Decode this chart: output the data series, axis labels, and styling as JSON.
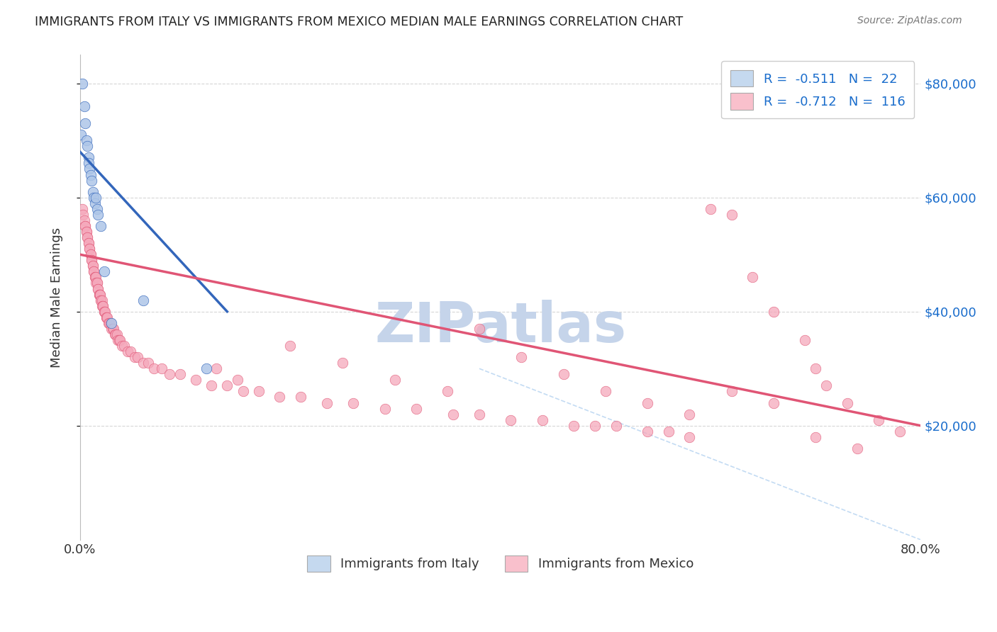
{
  "title": "IMMIGRANTS FROM ITALY VS IMMIGRANTS FROM MEXICO MEDIAN MALE EARNINGS CORRELATION CHART",
  "source": "Source: ZipAtlas.com",
  "ylabel": "Median Male Earnings",
  "y_ticks": [
    20000,
    40000,
    60000,
    80000
  ],
  "y_tick_labels": [
    "$20,000",
    "$40,000",
    "$60,000",
    "$80,000"
  ],
  "italy_color": "#aec6e8",
  "mexico_color": "#f5a8bb",
  "italy_line_color": "#3366bb",
  "mexico_line_color": "#e05575",
  "legend_italy_label": "R =  -0.511   N =  22",
  "legend_mexico_label": "R =  -0.712   N =  116",
  "legend_italy_fill": "#c5d9ef",
  "legend_mexico_fill": "#f9c0cc",
  "italy_x": [
    0.001,
    0.002,
    0.004,
    0.005,
    0.006,
    0.007,
    0.008,
    0.008,
    0.009,
    0.01,
    0.011,
    0.012,
    0.013,
    0.014,
    0.015,
    0.016,
    0.017,
    0.02,
    0.023,
    0.03,
    0.06,
    0.12
  ],
  "italy_y": [
    71000,
    80000,
    76000,
    73000,
    70000,
    69000,
    67000,
    66000,
    65000,
    64000,
    63000,
    61000,
    60000,
    59000,
    60000,
    58000,
    57000,
    55000,
    47000,
    38000,
    42000,
    30000
  ],
  "mexico_x": [
    0.002,
    0.003,
    0.004,
    0.005,
    0.005,
    0.006,
    0.006,
    0.007,
    0.007,
    0.008,
    0.008,
    0.009,
    0.009,
    0.01,
    0.01,
    0.011,
    0.011,
    0.012,
    0.012,
    0.013,
    0.013,
    0.014,
    0.014,
    0.015,
    0.015,
    0.016,
    0.016,
    0.017,
    0.017,
    0.018,
    0.018,
    0.019,
    0.019,
    0.02,
    0.02,
    0.021,
    0.021,
    0.022,
    0.022,
    0.023,
    0.023,
    0.024,
    0.025,
    0.025,
    0.026,
    0.027,
    0.028,
    0.029,
    0.03,
    0.031,
    0.032,
    0.033,
    0.034,
    0.035,
    0.036,
    0.037,
    0.038,
    0.04,
    0.042,
    0.045,
    0.048,
    0.052,
    0.055,
    0.06,
    0.065,
    0.07,
    0.078,
    0.085,
    0.095,
    0.11,
    0.125,
    0.14,
    0.155,
    0.17,
    0.19,
    0.21,
    0.235,
    0.26,
    0.29,
    0.32,
    0.355,
    0.38,
    0.41,
    0.44,
    0.47,
    0.49,
    0.51,
    0.54,
    0.56,
    0.58,
    0.6,
    0.62,
    0.64,
    0.66,
    0.69,
    0.7,
    0.71,
    0.73,
    0.76,
    0.78,
    0.13,
    0.15,
    0.2,
    0.25,
    0.3,
    0.35,
    0.38,
    0.42,
    0.46,
    0.5,
    0.54,
    0.58,
    0.62,
    0.66,
    0.7,
    0.74
  ],
  "mexico_y": [
    58000,
    57000,
    56000,
    55000,
    55000,
    54000,
    54000,
    53000,
    53000,
    52000,
    52000,
    51000,
    51000,
    50000,
    50000,
    49000,
    49000,
    48000,
    48000,
    47000,
    47000,
    46000,
    46000,
    46000,
    45000,
    45000,
    45000,
    44000,
    44000,
    43000,
    43000,
    43000,
    43000,
    42000,
    42000,
    42000,
    41000,
    41000,
    41000,
    40000,
    40000,
    40000,
    39000,
    39000,
    39000,
    38000,
    38000,
    38000,
    37000,
    37000,
    37000,
    36000,
    36000,
    36000,
    35000,
    35000,
    35000,
    34000,
    34000,
    33000,
    33000,
    32000,
    32000,
    31000,
    31000,
    30000,
    30000,
    29000,
    29000,
    28000,
    27000,
    27000,
    26000,
    26000,
    25000,
    25000,
    24000,
    24000,
    23000,
    23000,
    22000,
    22000,
    21000,
    21000,
    20000,
    20000,
    20000,
    19000,
    19000,
    18000,
    58000,
    57000,
    46000,
    40000,
    35000,
    30000,
    27000,
    24000,
    21000,
    19000,
    30000,
    28000,
    34000,
    31000,
    28000,
    26000,
    37000,
    32000,
    29000,
    26000,
    24000,
    22000,
    26000,
    24000,
    18000,
    16000
  ],
  "italy_line_x": [
    0.0,
    0.14
  ],
  "italy_line_y": [
    68000,
    40000
  ],
  "mexico_line_x": [
    0.0,
    0.8
  ],
  "mexico_line_y": [
    50000,
    20000
  ],
  "diag_line_x": [
    0.38,
    0.8
  ],
  "diag_line_y": [
    30000,
    0
  ],
  "xlim": [
    0.0,
    0.8
  ],
  "ylim": [
    0,
    85000
  ],
  "background_color": "#ffffff",
  "watermark_text": "ZIPatlas",
  "watermark_color": "#c5d4ea"
}
